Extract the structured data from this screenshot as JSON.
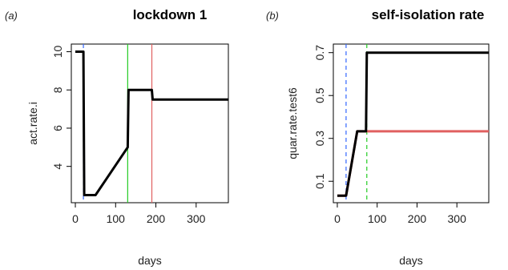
{
  "chart_data": [
    {
      "panel_label": "(a)",
      "title": "lockdown 1",
      "type": "line",
      "xlabel": "days",
      "ylabel": "act.rate.i",
      "xlim": [
        -10,
        380
      ],
      "ylim": [
        2.1,
        10.4
      ],
      "xticks": [
        0,
        100,
        200,
        300
      ],
      "yticks": [
        4,
        6,
        8,
        10
      ],
      "xtick_labels": [
        "0",
        "100",
        "200",
        "300"
      ],
      "ytick_labels": [
        "4",
        "6",
        "8",
        "10"
      ],
      "series": [
        {
          "color": "#000000",
          "points": [
            [
              0,
              10
            ],
            [
              20,
              10
            ],
            [
              22,
              2.5
            ],
            [
              50,
              2.5
            ],
            [
              130,
              5.0
            ],
            [
              132,
              8.0
            ],
            [
              190,
              8.0
            ],
            [
              192,
              7.5
            ],
            [
              380,
              7.5
            ]
          ]
        }
      ],
      "vlines": [
        {
          "x": 20,
          "color": "#3366ff",
          "style": "dashed"
        },
        {
          "x": 130,
          "color": "#22cc22",
          "style": "solid"
        },
        {
          "x": 190,
          "color": "#e06060",
          "style": "solid"
        }
      ],
      "grid": false
    },
    {
      "panel_label": "(b)",
      "title": "self-isolation rate",
      "type": "line",
      "xlabel": "days",
      "ylabel": "quar.rate.test6",
      "xlim": [
        -10,
        380
      ],
      "ylim": [
        0.0,
        0.74
      ],
      "xticks": [
        0,
        100,
        200,
        300
      ],
      "yticks": [
        0.1,
        0.3,
        0.5,
        0.7
      ],
      "xtick_labels": [
        "0",
        "100",
        "200",
        "300"
      ],
      "ytick_labels": [
        "0.1",
        "0.3",
        "0.5",
        "0.7"
      ],
      "series": [
        {
          "color": "#e06060",
          "points": [
            [
              0,
              0.033
            ],
            [
              22,
              0.033
            ],
            [
              50,
              0.333
            ],
            [
              380,
              0.333
            ]
          ]
        },
        {
          "color": "#000000",
          "points": [
            [
              0,
              0.033
            ],
            [
              22,
              0.033
            ],
            [
              50,
              0.333
            ],
            [
              72,
              0.333
            ],
            [
              74,
              0.7
            ],
            [
              380,
              0.7
            ]
          ]
        }
      ],
      "vlines": [
        {
          "x": 22,
          "color": "#3366ff",
          "style": "dashed"
        },
        {
          "x": 74,
          "color": "#22cc22",
          "style": "dashed"
        }
      ],
      "grid": false
    }
  ]
}
